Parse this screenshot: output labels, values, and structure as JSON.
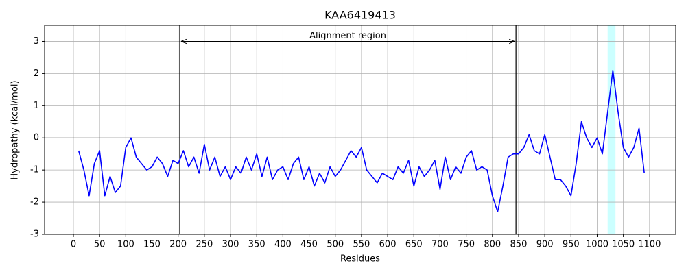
{
  "chart_data": {
    "type": "line",
    "title": "KAA6419413",
    "x_label": "Residues",
    "y_label": "Hydropathy (kcal/mol)",
    "x": [
      10,
      20,
      30,
      40,
      50,
      60,
      70,
      80,
      90,
      100,
      110,
      120,
      130,
      140,
      150,
      160,
      170,
      180,
      190,
      200,
      210,
      220,
      230,
      240,
      250,
      260,
      270,
      280,
      290,
      300,
      310,
      320,
      330,
      340,
      350,
      360,
      370,
      380,
      390,
      400,
      410,
      420,
      430,
      440,
      450,
      460,
      470,
      480,
      490,
      500,
      510,
      520,
      530,
      540,
      550,
      560,
      570,
      580,
      590,
      600,
      610,
      620,
      630,
      640,
      650,
      660,
      670,
      680,
      690,
      700,
      710,
      720,
      730,
      740,
      750,
      760,
      770,
      780,
      790,
      800,
      810,
      820,
      830,
      840,
      850,
      860,
      870,
      880,
      890,
      900,
      910,
      920,
      930,
      940,
      950,
      960,
      970,
      980,
      990,
      1000,
      1010,
      1020,
      1030,
      1040,
      1050,
      1060,
      1070,
      1080,
      1090
    ],
    "values": [
      -0.4,
      -1.0,
      -1.8,
      -0.8,
      -0.4,
      -1.8,
      -1.2,
      -1.7,
      -1.5,
      -0.3,
      0.0,
      -0.6,
      -0.8,
      -1.0,
      -0.9,
      -0.6,
      -0.8,
      -1.2,
      -0.7,
      -0.8,
      -0.4,
      -0.9,
      -0.6,
      -1.1,
      -0.2,
      -1.0,
      -0.6,
      -1.2,
      -0.9,
      -1.3,
      -0.9,
      -1.1,
      -0.6,
      -1.0,
      -0.5,
      -1.2,
      -0.6,
      -1.3,
      -1.0,
      -0.9,
      -1.3,
      -0.8,
      -0.6,
      -1.3,
      -0.9,
      -1.5,
      -1.1,
      -1.4,
      -0.9,
      -1.2,
      -1.0,
      -0.7,
      -0.4,
      -0.6,
      -0.3,
      -1.0,
      -1.2,
      -1.4,
      -1.1,
      -1.2,
      -1.3,
      -0.9,
      -1.1,
      -0.7,
      -1.5,
      -0.9,
      -1.2,
      -1.0,
      -0.7,
      -1.6,
      -0.6,
      -1.3,
      -0.9,
      -1.1,
      -0.6,
      -0.4,
      -1.0,
      -0.9,
      -1.0,
      -1.8,
      -2.3,
      -1.5,
      -0.6,
      -0.5,
      -0.5,
      -0.3,
      0.1,
      -0.4,
      -0.5,
      0.1,
      -0.6,
      -1.3,
      -1.3,
      -1.5,
      -1.8,
      -0.8,
      0.5,
      0.0,
      -0.3,
      0.0,
      -0.5,
      0.8,
      2.1,
      0.8,
      -0.3,
      -0.6,
      -0.3,
      0.3,
      -1.1
    ],
    "color": "#0000ff",
    "xlim": [
      -55,
      1150
    ],
    "ylim": [
      -3,
      3.5
    ],
    "xticks": [
      0,
      50,
      100,
      150,
      200,
      250,
      300,
      350,
      400,
      450,
      500,
      550,
      600,
      650,
      700,
      750,
      800,
      850,
      900,
      950,
      1000,
      1050,
      1100
    ],
    "yticks": [
      -3,
      -2,
      -1,
      0,
      1,
      2,
      3
    ],
    "grid": true,
    "hline": 0,
    "vlines": [
      203,
      845
    ],
    "span": [
      1020,
      1035
    ],
    "span_color": "#ccffff",
    "annotation": {
      "text": "Alignment region",
      "x": [
        203,
        845
      ],
      "y": 3
    }
  }
}
